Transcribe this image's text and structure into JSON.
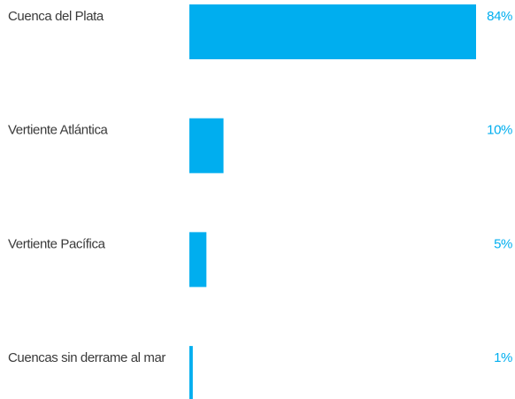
{
  "chart_data": {
    "type": "bar",
    "orientation": "horizontal",
    "categories": [
      "Cuenca del Plata",
      "Vertiente Atlántica",
      "Vertiente Pacífica",
      "Cuencas sin derrame al mar"
    ],
    "values": [
      84,
      10,
      5,
      1
    ],
    "value_labels": [
      "84%",
      "10%",
      "5%",
      "1%"
    ],
    "color": "#00aeef"
  }
}
